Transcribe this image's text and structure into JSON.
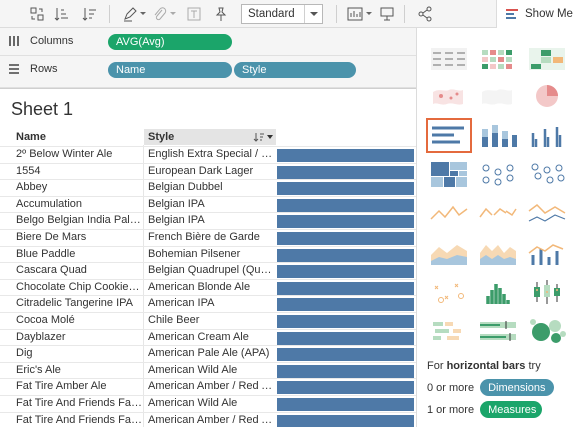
{
  "toolbar": {
    "mark_type": "Standard",
    "show_me_label": "Show Me"
  },
  "shelves": {
    "columns_label": "Columns",
    "rows_label": "Rows",
    "columns_pills": [
      "AVG(Avg)"
    ],
    "rows_pills": [
      "Name",
      "Style"
    ]
  },
  "sheet": {
    "title": "Sheet 1",
    "headers": {
      "name": "Name",
      "style": "Style"
    },
    "rows": [
      {
        "name": "2º Below Winter Ale",
        "style": "English Extra Special / Str...",
        "avg": 1
      },
      {
        "name": "1554",
        "style": "European Dark Lager",
        "avg": 1
      },
      {
        "name": "Abbey",
        "style": "Belgian Dubbel",
        "avg": 1
      },
      {
        "name": "Accumulation",
        "style": "Belgian IPA",
        "avg": 1
      },
      {
        "name": "Belgo Belgian India Pale A...",
        "style": "Belgian IPA",
        "avg": 1
      },
      {
        "name": "Biere De Mars",
        "style": "French Bière de Garde",
        "avg": 1
      },
      {
        "name": "Blue Paddle",
        "style": "Bohemian Pilsener",
        "avg": 1
      },
      {
        "name": "Cascara Quad",
        "style": "Belgian Quadrupel (Quad)",
        "avg": 1
      },
      {
        "name": "Chocolate Chip Cookie Do...",
        "style": "American Blonde Ale",
        "avg": 1
      },
      {
        "name": "Citradelic Tangerine IPA",
        "style": "American IPA",
        "avg": 1
      },
      {
        "name": "Cocoa Molé",
        "style": "Chile Beer",
        "avg": 1
      },
      {
        "name": "Dayblazer",
        "style": "American Cream Ale",
        "avg": 1
      },
      {
        "name": "Dig",
        "style": "American Pale Ale (APA)",
        "avg": 1
      },
      {
        "name": "Eric's Ale",
        "style": "American Wild Ale",
        "avg": 1
      },
      {
        "name": "Fat Tire Amber Ale",
        "style": "American Amber / Red Ale",
        "avg": 1
      },
      {
        "name": "Fat Tire And Friends Fat F...",
        "style": "American Wild Ale",
        "avg": 1
      },
      {
        "name": "Fat Tire And Friends Fat H...",
        "style": "American Amber / Red Ale",
        "avg": 1
      }
    ]
  },
  "show_me": {
    "hint_prefix": "For",
    "hint_chart": "horizontal bars",
    "hint_suffix": "try",
    "dimensions_prefix": "0 or more",
    "dimensions_label": "Dimensions",
    "measures_prefix": "1 or more",
    "measures_label": "Measures"
  },
  "colors": {
    "bar": "#4e79a7",
    "dimension_pill": "#4b93ab",
    "measure_pill": "#1ba56a",
    "selected_thumb": "#e46a3d"
  }
}
